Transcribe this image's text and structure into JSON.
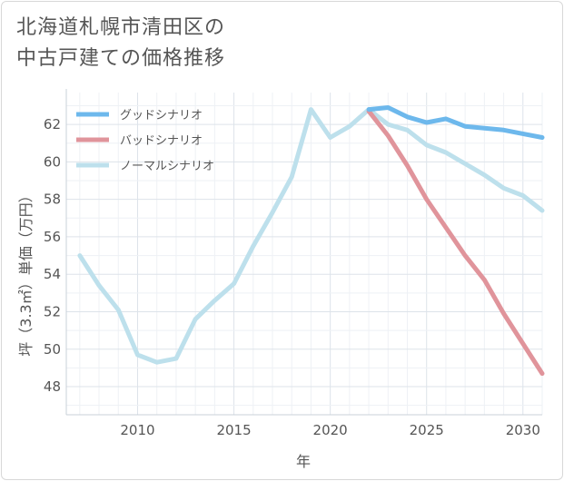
{
  "chart_data": {
    "type": "line",
    "title_lines": [
      "北海道札幌市清田区の",
      "中古戸建ての価格推移"
    ],
    "xlabel": "年",
    "ylabel": "坪（3.3㎡）単価（万円）",
    "xlim": [
      2006.3,
      2031
    ],
    "ylim": [
      46.5,
      63.7
    ],
    "x_ticks": [
      2010,
      2015,
      2020,
      2025,
      2030
    ],
    "y_ticks": [
      48,
      50,
      52,
      54,
      56,
      58,
      60,
      62
    ],
    "grid": true,
    "legend_position": "top-left",
    "series": [
      {
        "name": "グッドシナリオ",
        "color": "#6db8ec",
        "x": [
          2022,
          2023,
          2024,
          2025,
          2026,
          2027,
          2028,
          2029,
          2030,
          2031
        ],
        "y": [
          62.8,
          62.9,
          62.4,
          62.1,
          62.3,
          61.9,
          61.8,
          61.7,
          61.5,
          61.3
        ]
      },
      {
        "name": "バッドシナリオ",
        "color": "#e0949b",
        "x": [
          2022,
          2023,
          2024,
          2025,
          2026,
          2027,
          2028,
          2029,
          2030,
          2031
        ],
        "y": [
          62.7,
          61.4,
          59.8,
          58.0,
          56.5,
          55.0,
          53.7,
          51.9,
          50.3,
          48.7
        ]
      },
      {
        "name": "ノーマルシナリオ",
        "color": "#bde0ec",
        "x": [
          2007,
          2008,
          2009,
          2010,
          2011,
          2012,
          2013,
          2014,
          2015,
          2016,
          2017,
          2018,
          2019,
          2020,
          2021,
          2022,
          2023,
          2024,
          2025,
          2026,
          2027,
          2028,
          2029,
          2030,
          2031
        ],
        "y": [
          55.0,
          53.4,
          52.1,
          49.7,
          49.3,
          49.5,
          51.6,
          52.6,
          53.5,
          55.5,
          57.3,
          59.2,
          62.8,
          61.3,
          61.9,
          62.8,
          62.0,
          61.7,
          60.9,
          60.5,
          59.9,
          59.3,
          58.6,
          58.2,
          57.4
        ]
      }
    ]
  }
}
